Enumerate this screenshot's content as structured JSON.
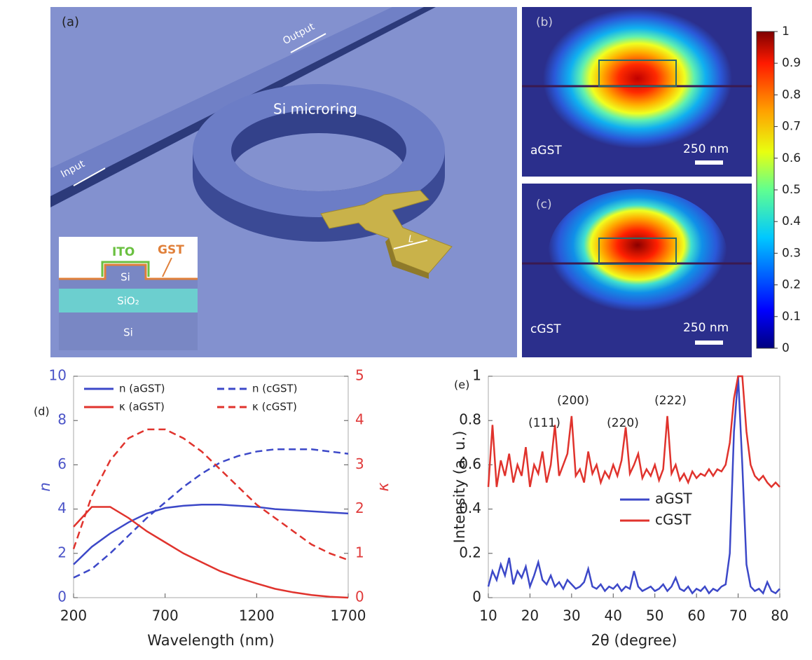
{
  "panels": {
    "a": {
      "label": "(a)",
      "output": "Output",
      "input": "Input",
      "ring": "Si microring",
      "length": "L",
      "inset": {
        "ito": "ITO",
        "gst": "GST",
        "si_rib": "Si",
        "sio2": "SiO₂",
        "si_sub": "Si"
      }
    },
    "b": {
      "label": "(b)",
      "material": "aGST",
      "scale": "250 nm"
    },
    "c": {
      "label": "(c)",
      "material": "cGST",
      "scale": "250 nm"
    },
    "colorbar": {
      "lim": [
        0,
        1
      ],
      "ticks": [
        0,
        0.1,
        0.2,
        0.3,
        0.4,
        0.5,
        0.6,
        0.7,
        0.8,
        0.9,
        1
      ]
    }
  },
  "chart_data": [
    {
      "type": "line",
      "label": "(d)",
      "xlabel": "Wavelength (nm)",
      "ylabel": "n",
      "y2label": "κ",
      "ytick_color": "#4a53c7",
      "y2tick_color": "#e03a3a",
      "legend": "upper left",
      "x": [
        200,
        300,
        400,
        500,
        600,
        700,
        800,
        900,
        1000,
        1100,
        1200,
        1300,
        1400,
        1500,
        1600,
        1700
      ],
      "xlim": [
        200,
        1700
      ],
      "xticks": [
        200,
        700,
        1200,
        1700
      ],
      "ylim": [
        0,
        10
      ],
      "yticks": [
        0,
        2,
        4,
        6,
        8,
        10
      ],
      "y2lim": [
        0,
        5
      ],
      "y2ticks": [
        0,
        1,
        2,
        3,
        4,
        5
      ],
      "series": [
        {
          "name": "n (aGST)",
          "color": "#3c48c8",
          "dash": false,
          "values": [
            1.5,
            2.3,
            2.9,
            3.4,
            3.8,
            4.05,
            4.15,
            4.2,
            4.2,
            4.15,
            4.1,
            4.0,
            3.95,
            3.9,
            3.85,
            3.8
          ]
        },
        {
          "name": "n (cGST)",
          "color": "#3c48c8",
          "dash": true,
          "values": [
            0.9,
            1.3,
            2.0,
            2.8,
            3.6,
            4.3,
            5.0,
            5.6,
            6.1,
            6.4,
            6.6,
            6.7,
            6.7,
            6.7,
            6.6,
            6.5
          ]
        },
        {
          "name": "κ (aGST)",
          "color": "#e0332d",
          "dash": false,
          "axis": "y2",
          "values": [
            1.6,
            2.05,
            2.05,
            1.8,
            1.5,
            1.25,
            1.0,
            0.8,
            0.6,
            0.45,
            0.32,
            0.2,
            0.12,
            0.06,
            0.02,
            0.0
          ]
        },
        {
          "name": "κ (cGST)",
          "color": "#e0332d",
          "dash": true,
          "axis": "y2",
          "values": [
            1.1,
            2.3,
            3.1,
            3.6,
            3.8,
            3.8,
            3.6,
            3.3,
            2.9,
            2.5,
            2.1,
            1.8,
            1.5,
            1.2,
            1.0,
            0.85
          ]
        }
      ]
    },
    {
      "type": "line",
      "label": "(e)",
      "xlabel": "2θ (degree)",
      "ylabel": "Intensity (a. u.)",
      "legend": "lower center",
      "annotations": [
        "(111)",
        "(200)",
        "(220)",
        "(222)"
      ],
      "x": [
        10,
        11,
        12,
        13,
        14,
        15,
        16,
        17,
        18,
        19,
        20,
        21,
        22,
        23,
        24,
        25,
        26,
        27,
        28,
        29,
        30,
        31,
        32,
        33,
        34,
        35,
        36,
        37,
        38,
        39,
        40,
        41,
        42,
        43,
        44,
        45,
        46,
        47,
        48,
        49,
        50,
        51,
        52,
        53,
        54,
        55,
        56,
        57,
        58,
        59,
        60,
        61,
        62,
        63,
        64,
        65,
        66,
        67,
        68,
        69,
        70,
        71,
        72,
        73,
        74,
        75,
        76,
        77,
        78,
        79,
        80
      ],
      "xlim": [
        10,
        80
      ],
      "xticks": [
        10,
        20,
        30,
        40,
        50,
        60,
        70,
        80
      ],
      "ylim": [
        0,
        1
      ],
      "yticks": [
        0,
        0.2,
        0.4,
        0.6,
        0.8,
        1
      ],
      "series": [
        {
          "name": "aGST",
          "color": "#3c48c8",
          "values": [
            0.05,
            0.12,
            0.08,
            0.15,
            0.1,
            0.18,
            0.06,
            0.12,
            0.09,
            0.14,
            0.05,
            0.1,
            0.16,
            0.08,
            0.06,
            0.1,
            0.05,
            0.07,
            0.04,
            0.08,
            0.06,
            0.04,
            0.05,
            0.07,
            0.13,
            0.05,
            0.04,
            0.06,
            0.03,
            0.05,
            0.04,
            0.06,
            0.03,
            0.05,
            0.04,
            0.12,
            0.05,
            0.03,
            0.04,
            0.05,
            0.03,
            0.04,
            0.06,
            0.03,
            0.05,
            0.09,
            0.04,
            0.03,
            0.05,
            0.02,
            0.04,
            0.03,
            0.05,
            0.02,
            0.04,
            0.03,
            0.05,
            0.06,
            0.2,
            0.75,
            1.0,
            0.6,
            0.15,
            0.05,
            0.03,
            0.04,
            0.02,
            0.07,
            0.03,
            0.02,
            0.04
          ]
        },
        {
          "name": "cGST",
          "color": "#e0332d",
          "values": [
            0.5,
            0.78,
            0.5,
            0.62,
            0.55,
            0.65,
            0.52,
            0.6,
            0.55,
            0.68,
            0.5,
            0.6,
            0.56,
            0.66,
            0.52,
            0.6,
            0.78,
            0.55,
            0.6,
            0.65,
            0.82,
            0.55,
            0.58,
            0.52,
            0.66,
            0.56,
            0.6,
            0.52,
            0.57,
            0.54,
            0.6,
            0.55,
            0.62,
            0.77,
            0.56,
            0.6,
            0.65,
            0.54,
            0.58,
            0.55,
            0.6,
            0.53,
            0.58,
            0.82,
            0.56,
            0.6,
            0.53,
            0.56,
            0.52,
            0.57,
            0.54,
            0.56,
            0.55,
            0.58,
            0.55,
            0.58,
            0.57,
            0.6,
            0.7,
            0.9,
            1.0,
            1.0,
            0.75,
            0.6,
            0.55,
            0.53,
            0.55,
            0.52,
            0.5,
            0.52,
            0.5
          ]
        }
      ]
    }
  ]
}
